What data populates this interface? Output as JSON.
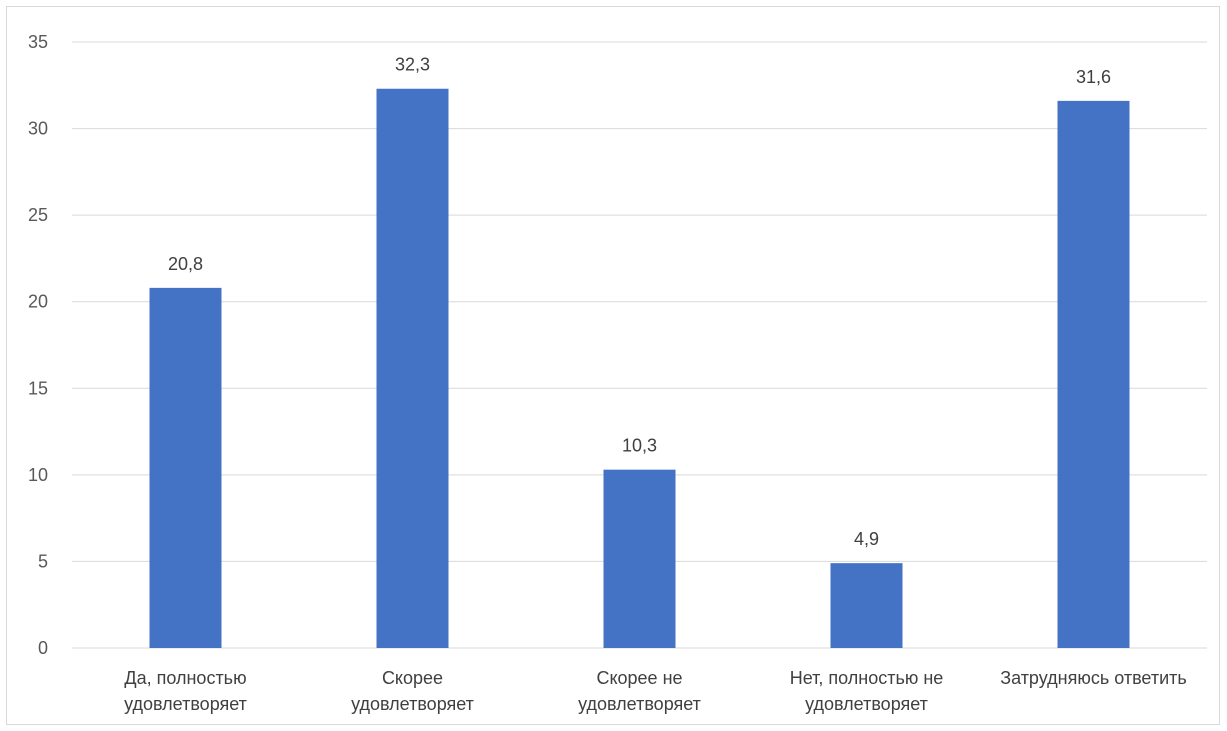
{
  "chart_data": {
    "type": "bar",
    "title": "",
    "xlabel": "",
    "ylabel": "",
    "categories": [
      [
        "Да, полностью",
        "удовлетворяет"
      ],
      [
        "Скорее",
        "удовлетворяет"
      ],
      [
        "Скорее не",
        "удовлетворяет"
      ],
      [
        "Нет, полностью не",
        "удовлетворяет"
      ],
      [
        "Затрудняюсь ответить"
      ]
    ],
    "values": [
      20.8,
      32.3,
      10.3,
      4.9,
      31.6
    ],
    "value_labels": [
      "20,8",
      "32,3",
      "10,3",
      "4,9",
      "31,6"
    ],
    "ylim": [
      0,
      35
    ],
    "yticks": [
      0,
      5,
      10,
      15,
      20,
      25,
      30,
      35
    ],
    "grid": true,
    "legend": "none",
    "colors": {
      "bar": "#4472c4",
      "grid": "#d9d9d9"
    }
  }
}
